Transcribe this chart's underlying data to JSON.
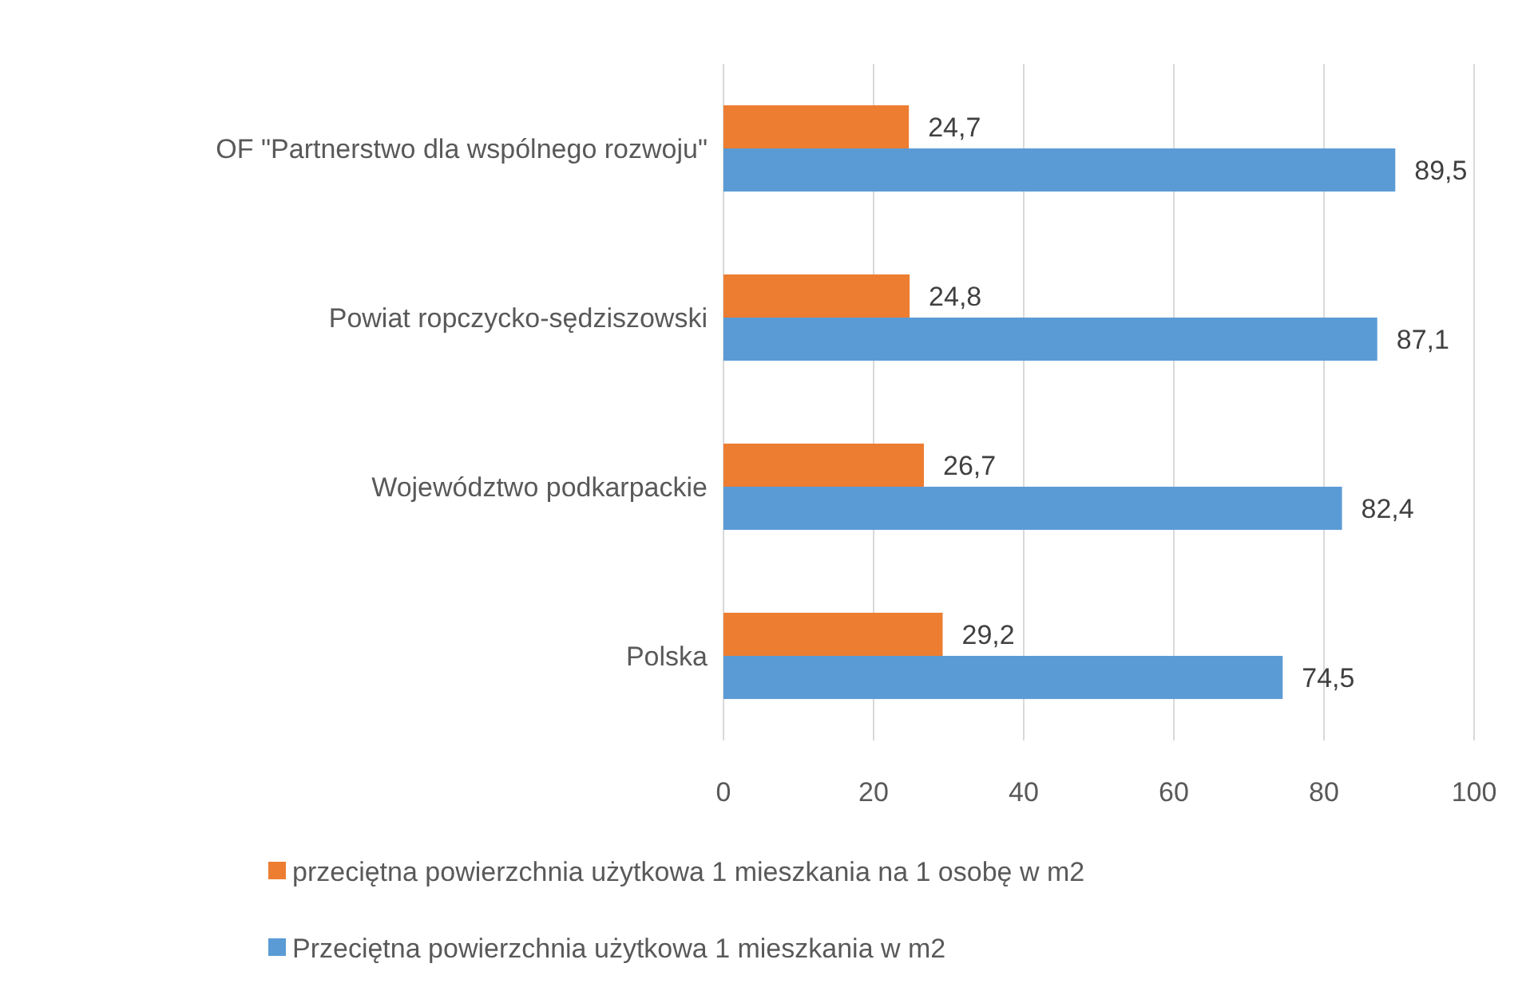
{
  "chart_data": {
    "type": "bar",
    "orientation": "horizontal",
    "categories": [
      "OF \"Partnerstwo dla wspólnego rozwoju\"",
      "Powiat ropczycko-sędziszowski",
      "Województwo podkarpackie",
      "Polska"
    ],
    "series": [
      {
        "name": "przeciętna powierzchnia użytkowa 1 mieszkania na 1 osobę w m2",
        "color": "#ed7d31",
        "values": [
          24.7,
          24.8,
          26.7,
          29.2
        ],
        "value_labels": [
          "24,7",
          "24,8",
          "26,7",
          "29,2"
        ]
      },
      {
        "name": "Przeciętna powierzchnia użytkowa 1 mieszkania w m2",
        "color": "#5b9bd5",
        "values": [
          89.5,
          87.1,
          82.4,
          74.5
        ],
        "value_labels": [
          "89,5",
          "87,1",
          "82,4",
          "74,5"
        ]
      }
    ],
    "xlim": [
      0,
      100
    ],
    "xticks": [
      0,
      20,
      40,
      60,
      80,
      100
    ],
    "grid": "x",
    "legend": "bottom"
  }
}
